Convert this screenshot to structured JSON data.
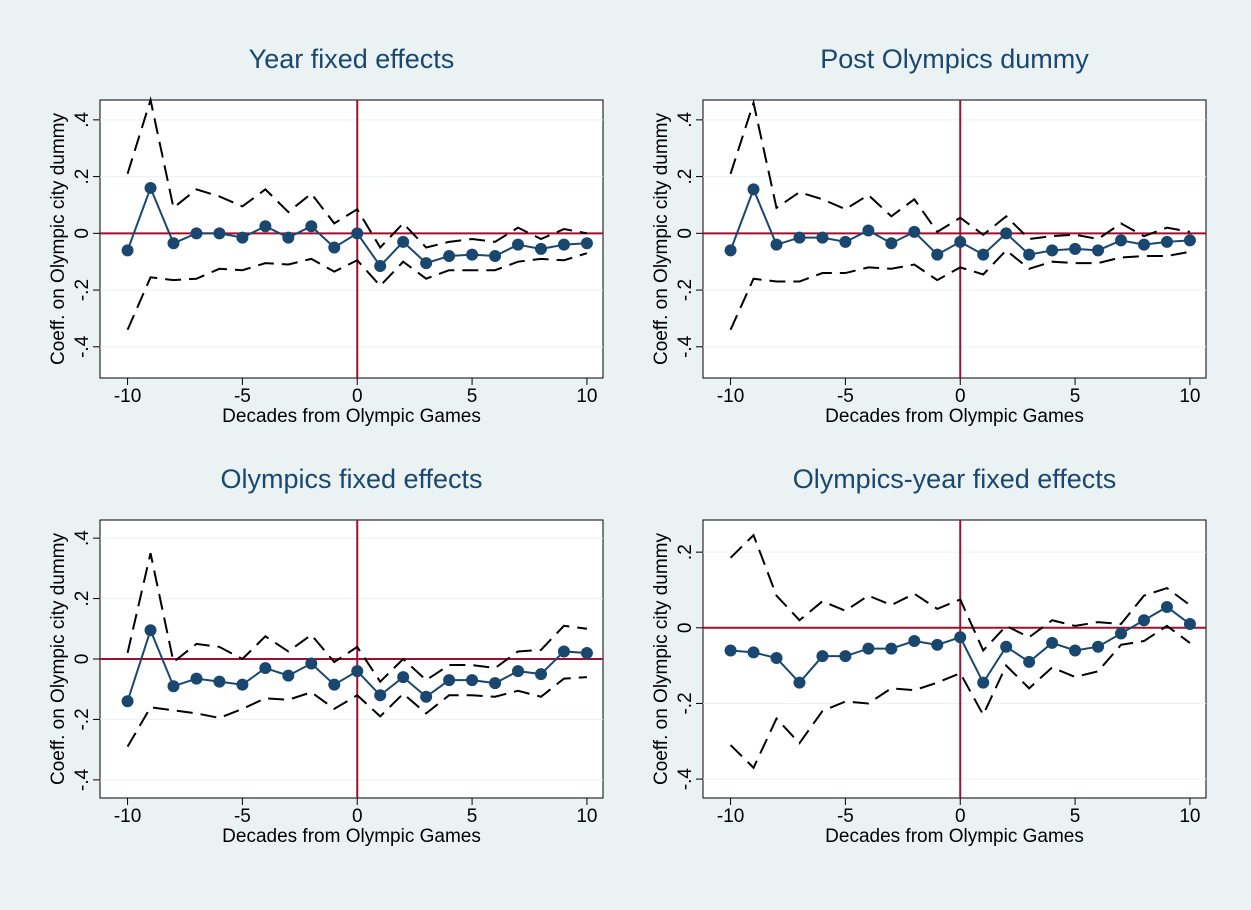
{
  "chart_data": [
    {
      "type": "line",
      "title": "Year fixed effects",
      "xlabel": "Decades from Olympic Games",
      "ylabel": "Coeff. on Olympic city dummy",
      "x": [
        -10,
        -9,
        -8,
        -7,
        -6,
        -5,
        -4,
        -3,
        -2,
        -1,
        0,
        1,
        2,
        3,
        4,
        5,
        6,
        7,
        8,
        9,
        10
      ],
      "xlim": [
        -11.2,
        10.7
      ],
      "xticks": [
        -10,
        -5,
        0,
        5,
        10
      ],
      "ylim": [
        -0.51,
        0.47
      ],
      "yticks": [
        {
          "value": -0.4,
          "label": "-.4"
        },
        {
          "value": -0.2,
          "label": "-.2"
        },
        0,
        {
          "value": 0.2,
          "label": ".2"
        },
        {
          "value": 0.4,
          "label": ".4"
        }
      ],
      "grid": true,
      "reference_lines": {
        "x": 0,
        "y": 0,
        "color": "#a0102e"
      },
      "series": [
        {
          "color": "#000000",
          "style": "dashed",
          "marker": false,
          "values": [
            0.21,
            0.47,
            0.09,
            0.155,
            0.13,
            0.095,
            0.155,
            0.075,
            0.14,
            0.035,
            0.085,
            -0.05,
            0.035,
            -0.05,
            -0.03,
            -0.02,
            -0.03,
            0.02,
            -0.02,
            0.015,
            0
          ]
        },
        {
          "color": "#000000",
          "style": "dashed",
          "marker": false,
          "values": [
            -0.34,
            -0.155,
            -0.165,
            -0.16,
            -0.125,
            -0.13,
            -0.105,
            -0.11,
            -0.09,
            -0.135,
            -0.095,
            -0.185,
            -0.1,
            -0.16,
            -0.13,
            -0.13,
            -0.13,
            -0.1,
            -0.09,
            -0.095,
            -0.07
          ]
        },
        {
          "color": "#1a476f",
          "style": "solid",
          "marker": true,
          "values": [
            -0.06,
            0.16,
            -0.035,
            0,
            0,
            -0.015,
            0.025,
            -0.015,
            0.025,
            -0.05,
            0,
            -0.115,
            -0.03,
            -0.105,
            -0.08,
            -0.075,
            -0.08,
            -0.04,
            -0.055,
            -0.04,
            -0.035
          ]
        }
      ]
    },
    {
      "type": "line",
      "title": "Post Olympics dummy",
      "xlabel": "Decades from Olympic Games",
      "ylabel": "Coeff. on Olympic city dummy",
      "x": [
        -10,
        -9,
        -8,
        -7,
        -6,
        -5,
        -4,
        -3,
        -2,
        -1,
        0,
        1,
        2,
        3,
        4,
        5,
        6,
        7,
        8,
        9,
        10
      ],
      "xlim": [
        -11.2,
        10.7
      ],
      "xticks": [
        -10,
        -5,
        0,
        5,
        10
      ],
      "ylim": [
        -0.51,
        0.47
      ],
      "yticks": [
        {
          "value": -0.4,
          "label": "-.4"
        },
        {
          "value": -0.2,
          "label": "-.2"
        },
        0,
        {
          "value": 0.2,
          "label": ".2"
        },
        {
          "value": 0.4,
          "label": ".4"
        }
      ],
      "grid": true,
      "reference_lines": {
        "x": 0,
        "y": 0,
        "color": "#a0102e"
      },
      "series": [
        {
          "color": "#000000",
          "style": "dashed",
          "marker": false,
          "values": [
            0.21,
            0.46,
            0.09,
            0.145,
            0.12,
            0.085,
            0.135,
            0.06,
            0.12,
            0.005,
            0.055,
            -0.005,
            0.06,
            -0.02,
            -0.01,
            -0.005,
            -0.02,
            0.035,
            -0.01,
            0.02,
            0.005
          ]
        },
        {
          "color": "#000000",
          "style": "dashed",
          "marker": false,
          "values": [
            -0.34,
            -0.16,
            -0.17,
            -0.17,
            -0.14,
            -0.14,
            -0.12,
            -0.125,
            -0.11,
            -0.165,
            -0.12,
            -0.145,
            -0.06,
            -0.125,
            -0.1,
            -0.105,
            -0.105,
            -0.085,
            -0.08,
            -0.08,
            -0.065
          ]
        },
        {
          "color": "#1a476f",
          "style": "solid",
          "marker": true,
          "values": [
            -0.06,
            0.155,
            -0.04,
            -0.015,
            -0.015,
            -0.03,
            0.01,
            -0.035,
            0.005,
            -0.075,
            -0.03,
            -0.075,
            0,
            -0.075,
            -0.06,
            -0.055,
            -0.06,
            -0.025,
            -0.04,
            -0.03,
            -0.025
          ]
        }
      ]
    },
    {
      "type": "line",
      "title": "Olympics fixed effects",
      "xlabel": "Decades from Olympic Games",
      "ylabel": "Coeff. on Olympic city dummy",
      "x": [
        -10,
        -9,
        -8,
        -7,
        -6,
        -5,
        -4,
        -3,
        -2,
        -1,
        0,
        1,
        2,
        3,
        4,
        5,
        6,
        7,
        8,
        9,
        10
      ],
      "xlim": [
        -11.2,
        10.7
      ],
      "xticks": [
        -10,
        -5,
        0,
        5,
        10
      ],
      "ylim": [
        -0.46,
        0.46
      ],
      "yticks": [
        {
          "value": -0.4,
          "label": "-.4"
        },
        {
          "value": -0.2,
          "label": "-.2"
        },
        0,
        {
          "value": 0.2,
          "label": ".2"
        },
        {
          "value": 0.4,
          "label": ".4"
        }
      ],
      "grid": true,
      "reference_lines": {
        "x": 0,
        "y": 0,
        "color": "#a0102e"
      },
      "series": [
        {
          "color": "#000000",
          "style": "dashed",
          "marker": false,
          "values": [
            0.02,
            0.35,
            -0.01,
            0.05,
            0.04,
            0,
            0.075,
            0.025,
            0.08,
            -0.01,
            0.04,
            -0.075,
            0,
            -0.07,
            -0.02,
            -0.02,
            -0.03,
            0.025,
            0.03,
            0.11,
            0.1
          ]
        },
        {
          "color": "#000000",
          "style": "dashed",
          "marker": false,
          "values": [
            -0.29,
            -0.16,
            -0.17,
            -0.18,
            -0.195,
            -0.165,
            -0.13,
            -0.135,
            -0.11,
            -0.165,
            -0.12,
            -0.19,
            -0.115,
            -0.18,
            -0.12,
            -0.12,
            -0.125,
            -0.105,
            -0.125,
            -0.065,
            -0.06
          ]
        },
        {
          "color": "#1a476f",
          "style": "solid",
          "marker": true,
          "values": [
            -0.14,
            0.095,
            -0.09,
            -0.065,
            -0.075,
            -0.085,
            -0.03,
            -0.055,
            -0.015,
            -0.085,
            -0.04,
            -0.12,
            -0.06,
            -0.125,
            -0.07,
            -0.07,
            -0.08,
            -0.04,
            -0.05,
            0.025,
            0.02
          ]
        }
      ]
    },
    {
      "type": "line",
      "title": "Olympics-year fixed effects",
      "xlabel": "Decades from Olympic Games",
      "ylabel": "Coeff. on Olympic city dummy",
      "x": [
        -10,
        -9,
        -8,
        -7,
        -6,
        -5,
        -4,
        -3,
        -2,
        -1,
        0,
        1,
        2,
        3,
        4,
        5,
        6,
        7,
        8,
        9,
        10
      ],
      "xlim": [
        -11.2,
        10.7
      ],
      "xticks": [
        -10,
        -5,
        0,
        5,
        10
      ],
      "ylim": [
        -0.45,
        0.285
      ],
      "yticks": [
        {
          "value": -0.4,
          "label": "-.4"
        },
        {
          "value": -0.2,
          "label": "-.2"
        },
        0,
        {
          "value": 0.2,
          "label": ".2"
        }
      ],
      "grid": true,
      "reference_lines": {
        "x": 0,
        "y": 0,
        "color": "#a0102e"
      },
      "series": [
        {
          "color": "#000000",
          "style": "dashed",
          "marker": false,
          "values": [
            0.185,
            0.245,
            0.085,
            0.02,
            0.07,
            0.045,
            0.085,
            0.06,
            0.09,
            0.05,
            0.075,
            -0.06,
            0.005,
            -0.025,
            0.02,
            0.005,
            0.015,
            0.01,
            0.085,
            0.105,
            0.06
          ]
        },
        {
          "color": "#000000",
          "style": "dashed",
          "marker": false,
          "values": [
            -0.31,
            -0.37,
            -0.24,
            -0.305,
            -0.22,
            -0.195,
            -0.2,
            -0.16,
            -0.165,
            -0.145,
            -0.12,
            -0.23,
            -0.1,
            -0.16,
            -0.105,
            -0.13,
            -0.115,
            -0.045,
            -0.035,
            0.005,
            -0.04
          ]
        },
        {
          "color": "#1a476f",
          "style": "solid",
          "marker": true,
          "values": [
            -0.06,
            -0.065,
            -0.08,
            -0.145,
            -0.075,
            -0.075,
            -0.055,
            -0.055,
            -0.035,
            -0.045,
            -0.025,
            -0.145,
            -0.05,
            -0.09,
            -0.04,
            -0.06,
            -0.05,
            -0.015,
            0.02,
            0.055,
            0.01
          ]
        }
      ]
    }
  ]
}
